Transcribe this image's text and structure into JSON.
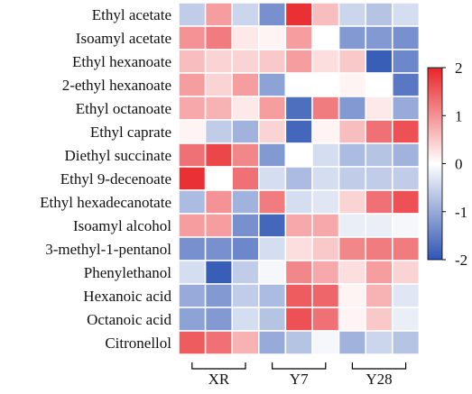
{
  "chart_data": {
    "type": "heatmap",
    "rows": [
      "Ethyl acetate",
      "Isoamyl acetate",
      "Ethyl hexanoate",
      "2-ethyl hexanoate",
      "Ethyl octanoate",
      "Ethyl caprate",
      "Diethyl succinate",
      "Ethyl 9-decenoate",
      "Ethyl hexadecanotate",
      "Isoamyl alcohol",
      "3-methyl-1-pentanol",
      "Phenylethanol",
      "Hexanoic acid",
      "Octanoic acid",
      "Citronellol"
    ],
    "groups": [
      {
        "label": "XR",
        "columns": [
          0,
          1,
          2
        ]
      },
      {
        "label": "Y7",
        "columns": [
          3,
          4,
          5
        ]
      },
      {
        "label": "Y28",
        "columns": [
          6,
          7,
          8
        ]
      }
    ],
    "values": [
      [
        -0.6,
        0.9,
        -0.5,
        -1.3,
        1.9,
        0.6,
        -0.5,
        -0.7,
        -0.4
      ],
      [
        1.0,
        1.2,
        0.2,
        0.1,
        0.9,
        0.0,
        -1.2,
        -1.2,
        -1.3
      ],
      [
        0.6,
        0.4,
        0.4,
        0.5,
        0.9,
        0.3,
        0.5,
        -1.9,
        -1.4
      ],
      [
        0.9,
        0.4,
        0.9,
        -1.1,
        0.0,
        0.0,
        0.1,
        0.0,
        -1.6
      ],
      [
        0.8,
        0.7,
        0.2,
        0.9,
        -1.7,
        1.2,
        -1.2,
        0.2,
        -1.0
      ],
      [
        0.1,
        -0.6,
        -0.9,
        0.4,
        -1.8,
        0.1,
        0.6,
        1.3,
        1.6
      ],
      [
        1.3,
        1.7,
        1.1,
        -1.2,
        0.0,
        -0.4,
        -0.8,
        -0.7,
        -0.9
      ],
      [
        1.9,
        0.0,
        1.3,
        -0.4,
        -0.8,
        -0.4,
        -0.6,
        -0.6,
        -0.6
      ],
      [
        -0.8,
        1.0,
        -0.9,
        1.2,
        -0.4,
        -0.3,
        0.4,
        1.3,
        1.6
      ],
      [
        0.9,
        0.9,
        -1.3,
        -1.8,
        0.8,
        0.8,
        -0.2,
        -0.2,
        -0.1
      ],
      [
        -1.3,
        -1.3,
        -1.4,
        -0.4,
        0.3,
        0.5,
        1.1,
        1.2,
        1.2
      ],
      [
        -0.4,
        -1.9,
        -0.6,
        -0.1,
        1.1,
        0.8,
        0.3,
        0.9,
        0.4
      ],
      [
        -1.0,
        -1.2,
        -0.6,
        -0.8,
        1.5,
        1.4,
        0.1,
        0.7,
        -0.3
      ],
      [
        -1.1,
        -1.2,
        -0.4,
        -0.7,
        1.6,
        1.3,
        0.1,
        0.5,
        -0.2
      ],
      [
        1.5,
        1.3,
        0.7,
        -1.0,
        -0.7,
        -0.1,
        -0.9,
        -0.5,
        -0.7
      ]
    ],
    "colorbar": {
      "min": -2,
      "max": 2,
      "ticks": [
        "2",
        "1",
        "0",
        "-1",
        "-2"
      ],
      "low_color": "#2f55b3",
      "mid_color": "#ffffff",
      "high_color": "#e8252a"
    }
  }
}
